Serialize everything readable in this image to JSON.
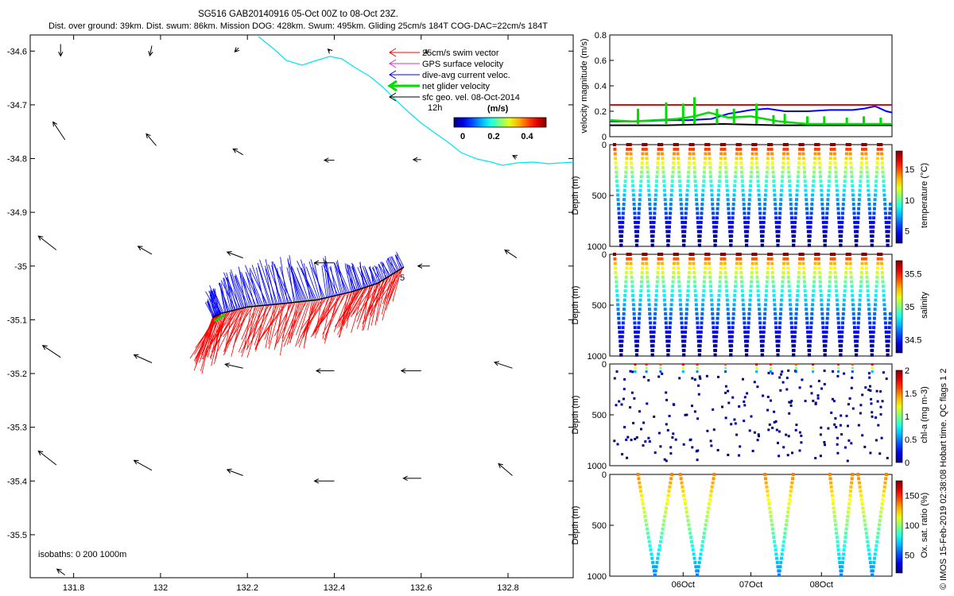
{
  "header": {
    "title": "SG516 GAB20140916 05-Oct 00Z to 08-Oct 23Z.",
    "subtitle": "Dist. over ground: 39km. Dist. swum: 86km. Mission DOG: 428km. Swum: 495km. Gliding 25cm/s 184T COG-DAC=22cm/s 184T"
  },
  "copyright": "© IMOS 15-Feb-2019 02:38:08 Hobart time. QC flags 1  2",
  "colors": {
    "swim": "#ff0000",
    "gps": "#cc33cc",
    "dac": "#0000ff",
    "net": "#00dd00",
    "geo": "#000000",
    "coast": "#00e5ee"
  },
  "chart_data": [
    {
      "type": "map",
      "xlim": [
        131.7,
        132.95
      ],
      "ylim": [
        -35.58,
        -34.57
      ],
      "xticks": [
        "131.8",
        "132",
        "132.2",
        "132.4",
        "132.6",
        "132.8"
      ],
      "yticks": [
        "-34.6",
        "-34.7",
        "-34.8",
        "-34.9",
        "-35",
        "-35.1",
        "-35.2",
        "-35.3",
        "-35.4",
        "-35.5"
      ],
      "legend": [
        {
          "label": "25cm/s swim vector",
          "color": "#ff0000"
        },
        {
          "label": "GPS surface velocity",
          "color": "#cc33cc"
        },
        {
          "label": "dive-avg current veloc.",
          "color": "#0000ff"
        },
        {
          "label": "net glider velocity",
          "color": "#00dd00"
        },
        {
          "label": "sfc geo. vel. 08-Oct-2014",
          "color": "#000000"
        }
      ],
      "colorbar": {
        "label": "(m/s)",
        "ticks": [
          "0",
          "0.2",
          "0.4"
        ],
        "range": [
          0,
          0.5
        ]
      },
      "annotations": {
        "time_mark": "12h",
        "waypoint": "5",
        "isobaths": "isobaths: 0   200  1000m"
      },
      "track": [
        {
          "lon": 132.12,
          "lat": -35.096
        },
        {
          "lon": 132.14,
          "lat": -35.088
        },
        {
          "lon": 132.2,
          "lat": -35.076
        },
        {
          "lon": 132.28,
          "lat": -35.07
        },
        {
          "lon": 132.36,
          "lat": -35.063
        },
        {
          "lon": 132.44,
          "lat": -35.048
        },
        {
          "lon": 132.5,
          "lat": -35.032
        },
        {
          "lon": 132.56,
          "lat": -35.002
        }
      ],
      "geo_vectors": [
        {
          "lon": 131.77,
          "lat": -34.587,
          "u": 0.0,
          "v": -0.6
        },
        {
          "lon": 131.98,
          "lat": -34.59,
          "u": -0.1,
          "v": -0.5
        },
        {
          "lon": 132.18,
          "lat": -34.594,
          "u": -0.2,
          "v": -0.2
        },
        {
          "lon": 132.39,
          "lat": -34.6,
          "u": -0.1,
          "v": 0.1
        },
        {
          "lon": 132.61,
          "lat": -34.601,
          "u": 0.1,
          "v": -0.1
        },
        {
          "lon": 131.78,
          "lat": -34.765,
          "u": -0.6,
          "v": 0.9
        },
        {
          "lon": 131.99,
          "lat": -34.776,
          "u": -0.5,
          "v": 0.6
        },
        {
          "lon": 132.19,
          "lat": -34.793,
          "u": -0.5,
          "v": 0.3
        },
        {
          "lon": 132.4,
          "lat": -34.803,
          "u": -0.5,
          "v": 0.0
        },
        {
          "lon": 132.6,
          "lat": -34.802,
          "u": -0.4,
          "v": 0.0
        },
        {
          "lon": 132.82,
          "lat": -34.798,
          "u": -0.2,
          "v": 0.1
        },
        {
          "lon": 131.76,
          "lat": -34.97,
          "u": -0.9,
          "v": 0.7
        },
        {
          "lon": 131.98,
          "lat": -34.978,
          "u": -0.7,
          "v": 0.4
        },
        {
          "lon": 132.19,
          "lat": -34.985,
          "u": -0.8,
          "v": 0.3
        },
        {
          "lon": 132.4,
          "lat": -34.994,
          "u": -1.0,
          "v": 0.0
        },
        {
          "lon": 132.62,
          "lat": -35.0,
          "u": -0.6,
          "v": 0.0
        },
        {
          "lon": 132.82,
          "lat": -34.985,
          "u": -0.6,
          "v": 0.4
        },
        {
          "lon": 131.77,
          "lat": -35.17,
          "u": -0.9,
          "v": 0.6
        },
        {
          "lon": 131.98,
          "lat": -35.18,
          "u": -0.9,
          "v": 0.4
        },
        {
          "lon": 132.19,
          "lat": -35.19,
          "u": -0.9,
          "v": 0.2
        },
        {
          "lon": 132.4,
          "lat": -35.195,
          "u": -0.9,
          "v": 0.0
        },
        {
          "lon": 132.6,
          "lat": -35.195,
          "u": -1.0,
          "v": 0.0
        },
        {
          "lon": 132.81,
          "lat": -35.19,
          "u": -0.9,
          "v": 0.3
        },
        {
          "lon": 131.76,
          "lat": -35.37,
          "u": -0.9,
          "v": 0.7
        },
        {
          "lon": 131.98,
          "lat": -35.38,
          "u": -0.9,
          "v": 0.5
        },
        {
          "lon": 132.19,
          "lat": -35.39,
          "u": -0.8,
          "v": 0.3
        },
        {
          "lon": 132.4,
          "lat": -35.4,
          "u": -1.0,
          "v": 0.0
        },
        {
          "lon": 132.6,
          "lat": -35.395,
          "u": -0.9,
          "v": 0.0
        },
        {
          "lon": 132.81,
          "lat": -35.39,
          "u": -0.7,
          "v": 0.6
        },
        {
          "lon": 131.78,
          "lat": -35.575,
          "u": -0.4,
          "v": 0.3
        }
      ]
    },
    {
      "type": "line",
      "ylabel": "velocity magnitude (m/s)",
      "ylim": [
        0,
        0.8
      ],
      "yticks": [
        "0",
        "0.2",
        "0.4",
        "0.6",
        "0.8"
      ],
      "series": [
        {
          "color": "#ff0000",
          "x": [
            0,
            1
          ],
          "values": [
            0.25,
            0.25
          ]
        },
        {
          "color": "#0000ff",
          "x": [
            0,
            0.1,
            0.2,
            0.28,
            0.36,
            0.42,
            0.5,
            0.56,
            0.62,
            0.7,
            0.78,
            0.86,
            0.9,
            0.94,
            0.98,
            1
          ],
          "values": [
            0.12,
            0.12,
            0.13,
            0.13,
            0.14,
            0.18,
            0.21,
            0.22,
            0.2,
            0.2,
            0.21,
            0.21,
            0.22,
            0.24,
            0.2,
            0.19
          ]
        },
        {
          "color": "#000000",
          "x": [
            0,
            0.2,
            0.4,
            0.6,
            0.8,
            1
          ],
          "values": [
            0.09,
            0.09,
            0.1,
            0.09,
            0.09,
            0.09
          ]
        },
        {
          "color": "#00dd00",
          "x": [
            0,
            0.08,
            0.16,
            0.24,
            0.3,
            0.35,
            0.42,
            0.5,
            0.55,
            0.6,
            0.7,
            0.8,
            0.9,
            1
          ],
          "values": [
            0.13,
            0.12,
            0.13,
            0.14,
            0.16,
            0.19,
            0.15,
            0.16,
            0.14,
            0.12,
            0.1,
            0.1,
            0.1,
            0.1
          ]
        }
      ]
    },
    {
      "type": "scatter",
      "ylabel": "Depth (m)",
      "cbar_label": "temperature (°C)",
      "yticks": [
        "0",
        "500",
        "1000"
      ],
      "cbar_ticks": [
        "5",
        "10",
        "15"
      ],
      "cbar_range": [
        3,
        18
      ],
      "profiles": 18,
      "max_depth": 1000
    },
    {
      "type": "scatter",
      "ylabel": "Depth (m)",
      "cbar_label": "salinity",
      "yticks": [
        "0",
        "500",
        "1000"
      ],
      "cbar_ticks": [
        "34.5",
        "35",
        "35.5"
      ],
      "cbar_range": [
        34.3,
        35.7
      ],
      "profiles": 18,
      "max_depth": 1000
    },
    {
      "type": "scatter",
      "ylabel": "Depth (m)",
      "cbar_label": "chl-a (mg m-3)",
      "yticks": [
        "0",
        "500",
        "1000"
      ],
      "cbar_ticks": [
        "0",
        "0.5",
        "1",
        "1.5",
        "2"
      ],
      "cbar_range": [
        0,
        2
      ],
      "max_depth": 1000
    },
    {
      "type": "scatter",
      "ylabel": "Depth (m)",
      "cbar_label": "Ox. sat. ratio (%)",
      "yticks": [
        "0",
        "500",
        "1000"
      ],
      "cbar_ticks": [
        "50",
        "100",
        "150"
      ],
      "cbar_range": [
        20,
        175
      ],
      "xticks": [
        "06Oct",
        "07Oct",
        "08Oct"
      ],
      "max_depth": 1000
    }
  ]
}
